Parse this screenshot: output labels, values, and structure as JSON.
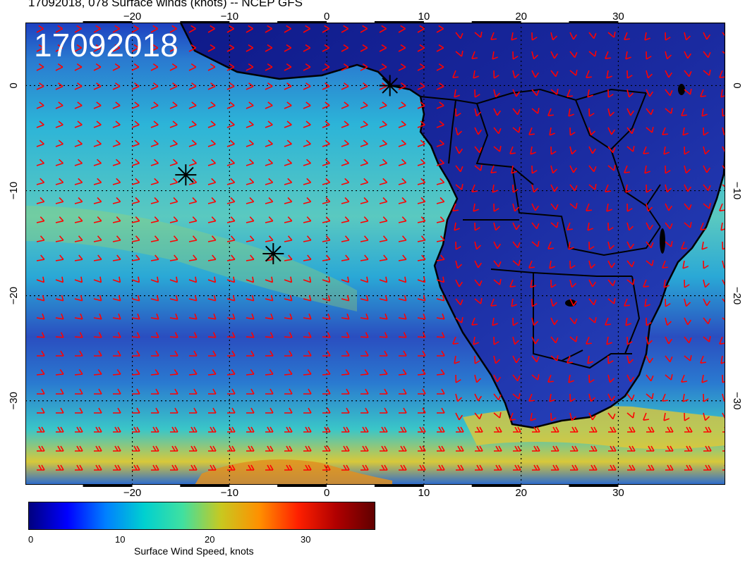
{
  "header": {
    "title": "17092018, 078 Surface winds (knots) -- NCEP GFS"
  },
  "map": {
    "date_stamp": "17092018",
    "lon_ticks": [
      "−20",
      "−10",
      "0",
      "10",
      "20",
      "30"
    ],
    "lat_ticks": [
      "0",
      "−10",
      "−20",
      "−30"
    ],
    "lon_range": [
      -31,
      41
    ],
    "lat_range": [
      6,
      -38
    ],
    "grid": true,
    "colors": {
      "barbs": "#ff0000",
      "coast": "#000000",
      "ocean_low": "#1a2fb0",
      "ocean_mid": "#27b6d6",
      "ocean_high": "#e4d020",
      "land": "#131c8c",
      "grid": "#000000"
    },
    "markers": [
      {
        "name": "storm-marker-1",
        "lon": 6.5,
        "lat": 0.0
      },
      {
        "name": "storm-marker-2",
        "lon": -14.5,
        "lat": -8.5
      },
      {
        "name": "storm-marker-3",
        "lon": -5.5,
        "lat": -16.0
      }
    ]
  },
  "colorbar": {
    "label": "Surface Wind Speed, knots",
    "ticks": [
      "0",
      "10",
      "20",
      "30"
    ],
    "stops": [
      "#00007f",
      "#0000ff",
      "#0080ff",
      "#00d0d0",
      "#40e0a0",
      "#c8c820",
      "#ff9000",
      "#ff2000",
      "#b00000",
      "#600000"
    ]
  }
}
